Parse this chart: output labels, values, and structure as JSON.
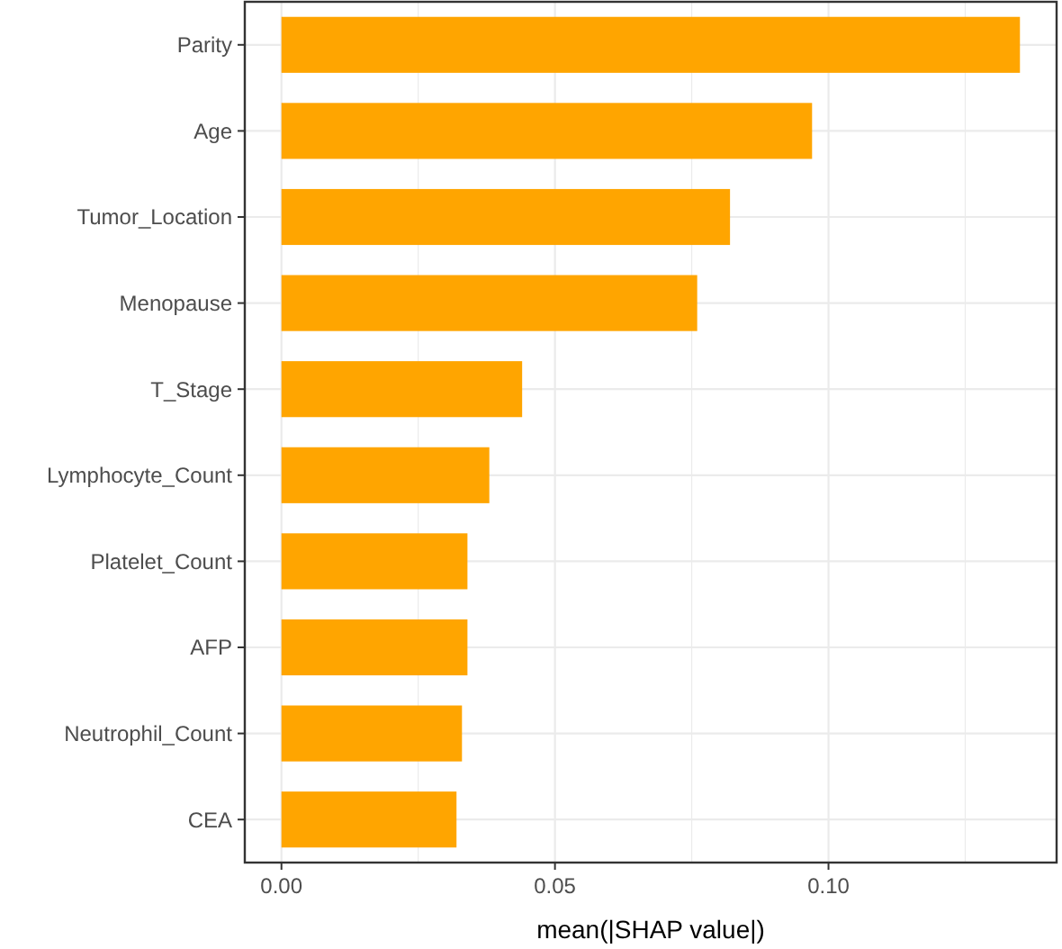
{
  "chart_data": {
    "type": "bar",
    "orientation": "horizontal",
    "xlabel": "mean(|SHAP value|)",
    "categories": [
      "Parity",
      "Age",
      "Tumor_Location",
      "Menopause",
      "T_Stage",
      "Lymphocyte_Count",
      "Platelet_Count",
      "AFP",
      "Neutrophil_Count",
      "CEA"
    ],
    "values": [
      0.135,
      0.097,
      0.082,
      0.076,
      0.044,
      0.038,
      0.034,
      0.034,
      0.033,
      0.032
    ],
    "color": "#ffa500",
    "xlim": [
      -0.0067,
      0.1417
    ],
    "xticks": [
      {
        "value": 0,
        "label": "0.00"
      },
      {
        "value": 0.025,
        "label": null
      },
      {
        "value": 0.05,
        "label": "0.05"
      },
      {
        "value": 0.075,
        "label": null
      },
      {
        "value": 0.1,
        "label": "0.10"
      },
      {
        "value": 0.125,
        "label": null
      }
    ],
    "grid": true
  }
}
